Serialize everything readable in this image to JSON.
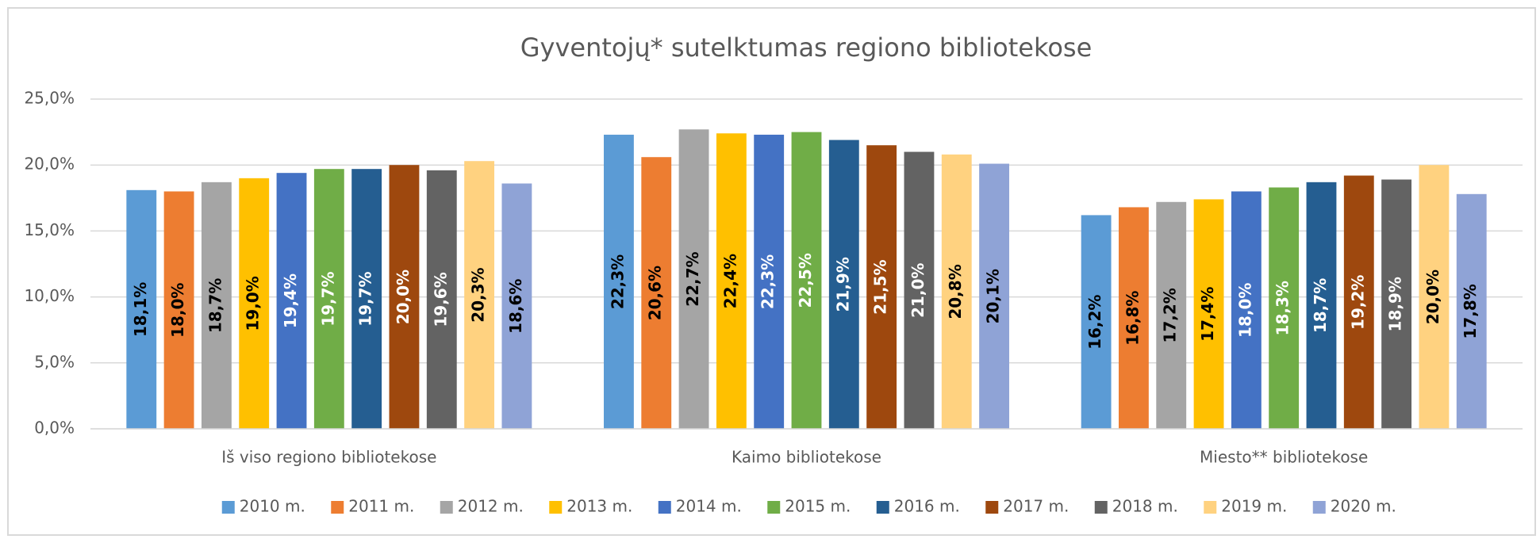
{
  "chart_data": {
    "type": "bar",
    "title": "Gyventojų* sutelktumas regiono bibliotekose",
    "categories": [
      "Iš viso regiono bibliotekose",
      "Kaimo bibliotekose",
      "Miesto** bibliotekose"
    ],
    "ylim": [
      0,
      25
    ],
    "yticks": [
      {
        "value": 0,
        "label": "0,0%"
      },
      {
        "value": 5,
        "label": "5,0%"
      },
      {
        "value": 10,
        "label": "10,0%"
      },
      {
        "value": 15,
        "label": "15,0%"
      },
      {
        "value": 20,
        "label": "20,0%"
      },
      {
        "value": 25,
        "label": "25,0%"
      }
    ],
    "grid": true,
    "legend": "bottom",
    "series": [
      {
        "name": "2010 m.",
        "color": "#5b9bd5",
        "label_color": "#000000",
        "values": [
          18.1,
          22.3,
          16.2
        ],
        "value_labels": [
          "18,1%",
          "22,3%",
          "16,2%"
        ]
      },
      {
        "name": "2011 m.",
        "color": "#ed7d31",
        "label_color": "#000000",
        "values": [
          18.0,
          20.6,
          16.8
        ],
        "value_labels": [
          "18,0%",
          "20,6%",
          "16,8%"
        ]
      },
      {
        "name": "2012 m.",
        "color": "#a5a5a5",
        "label_color": "#000000",
        "values": [
          18.7,
          22.7,
          17.2
        ],
        "value_labels": [
          "18,7%",
          "22,7%",
          "17,2%"
        ]
      },
      {
        "name": "2013 m.",
        "color": "#ffc000",
        "label_color": "#000000",
        "values": [
          19.0,
          22.4,
          17.4
        ],
        "value_labels": [
          "19,0%",
          "22,4%",
          "17,4%"
        ]
      },
      {
        "name": "2014 m.",
        "color": "#4472c4",
        "label_color": "#ffffff",
        "values": [
          19.4,
          22.3,
          18.0
        ],
        "value_labels": [
          "19,4%",
          "22,3%",
          "18,0%"
        ]
      },
      {
        "name": "2015 m.",
        "color": "#70ad47",
        "label_color": "#ffffff",
        "values": [
          19.7,
          22.5,
          18.3
        ],
        "value_labels": [
          "19,7%",
          "22,5%",
          "18,3%"
        ]
      },
      {
        "name": "2016 m.",
        "color": "#255e91",
        "label_color": "#ffffff",
        "values": [
          19.7,
          21.9,
          18.7
        ],
        "value_labels": [
          "19,7%",
          "21,9%",
          "18,7%"
        ]
      },
      {
        "name": "2017 m.",
        "color": "#9e480e",
        "label_color": "#ffffff",
        "values": [
          20.0,
          21.5,
          19.2
        ],
        "value_labels": [
          "20,0%",
          "21,5%",
          "19,2%"
        ]
      },
      {
        "name": "2018 m.",
        "color": "#636363",
        "label_color": "#ffffff",
        "values": [
          19.6,
          21.0,
          18.9
        ],
        "value_labels": [
          "19,6%",
          "21,0%",
          "18,9%"
        ]
      },
      {
        "name": "2019 m.",
        "color": "#ffd280",
        "label_color": "#000000",
        "values": [
          20.3,
          20.8,
          20.0
        ],
        "value_labels": [
          "20,3%",
          "20,8%",
          "20,0%"
        ]
      },
      {
        "name": "2020 m.",
        "color": "#8fa3d6",
        "label_color": "#000000",
        "values": [
          18.6,
          20.1,
          17.8
        ],
        "value_labels": [
          "18,6%",
          "20,1%",
          "17,8%"
        ]
      }
    ]
  }
}
